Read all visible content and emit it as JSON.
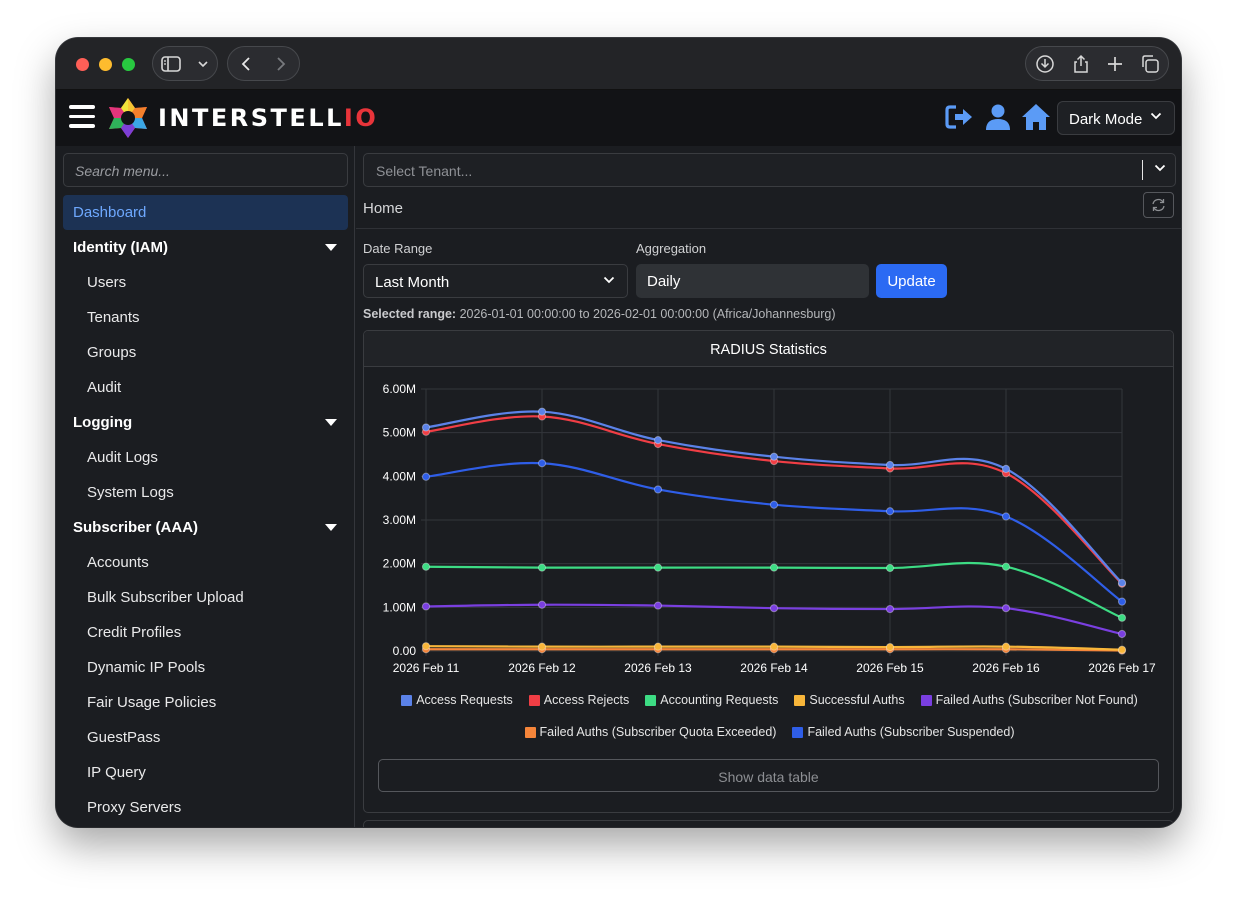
{
  "browser": {
    "icons": [
      "sidebar-icon",
      "chevron-down-icon",
      "back-icon",
      "forward-icon",
      "download-icon",
      "share-icon",
      "new-tab-icon",
      "tabs-icon"
    ]
  },
  "header": {
    "brand_main": "INTERSTELL",
    "brand_accent": "IO",
    "theme_label": "Dark Mode",
    "icon_color": "#5b9bf6"
  },
  "sidebar": {
    "search_placeholder": "Search menu...",
    "items": [
      {
        "label": "Dashboard",
        "kind": "active"
      },
      {
        "label": "Identity (IAM)",
        "kind": "section"
      },
      {
        "label": "Users",
        "kind": "sub"
      },
      {
        "label": "Tenants",
        "kind": "sub"
      },
      {
        "label": "Groups",
        "kind": "sub"
      },
      {
        "label": "Audit",
        "kind": "sub"
      },
      {
        "label": "Logging",
        "kind": "section"
      },
      {
        "label": "Audit Logs",
        "kind": "sub"
      },
      {
        "label": "System Logs",
        "kind": "sub"
      },
      {
        "label": "Subscriber (AAA)",
        "kind": "section"
      },
      {
        "label": "Accounts",
        "kind": "sub"
      },
      {
        "label": "Bulk Subscriber Upload",
        "kind": "sub"
      },
      {
        "label": "Credit Profiles",
        "kind": "sub"
      },
      {
        "label": "Dynamic IP Pools",
        "kind": "sub"
      },
      {
        "label": "Fair Usage Policies",
        "kind": "sub"
      },
      {
        "label": "GuestPass",
        "kind": "sub"
      },
      {
        "label": "IP Query",
        "kind": "sub"
      },
      {
        "label": "Proxy Servers",
        "kind": "sub"
      }
    ]
  },
  "main": {
    "tenant_placeholder": "Select Tenant...",
    "breadcrumb": "Home",
    "date_range_label": "Date Range",
    "date_range_value": "Last Month",
    "aggregation_label": "Aggregation",
    "aggregation_value": "Daily",
    "update_label": "Update",
    "selected_range_label": "Selected range:",
    "selected_range_value": "2026-01-01 00:00:00 to 2026-02-01 00:00:00 (Africa/Johannesburg)",
    "card_title": "RADIUS Statistics",
    "show_table_label": "Show data table"
  },
  "chart_data": {
    "type": "line",
    "title": "RADIUS Statistics",
    "categories": [
      "2026 Feb 11",
      "2026 Feb 12",
      "2026 Feb 13",
      "2026 Feb 14",
      "2026 Feb 15",
      "2026 Feb 16",
      "2026 Feb 17"
    ],
    "y_ticks": [
      "0.00",
      "1.00M",
      "2.00M",
      "3.00M",
      "4.00M",
      "5.00M",
      "6.00M"
    ],
    "ylim": [
      0,
      6000000
    ],
    "grid": true,
    "legend_position": "bottom",
    "series": [
      {
        "name": "Access Requests",
        "color": "#5b82e8",
        "values": [
          5120000,
          5480000,
          4830000,
          4450000,
          4260000,
          4170000,
          1560000
        ]
      },
      {
        "name": "Access Rejects",
        "color": "#f03e45",
        "values": [
          5020000,
          5370000,
          4740000,
          4350000,
          4180000,
          4070000,
          1540000
        ]
      },
      {
        "name": "Accounting Requests",
        "color": "#3ddc84",
        "values": [
          1930000,
          1910000,
          1910000,
          1910000,
          1900000,
          1930000,
          760000
        ]
      },
      {
        "name": "Successful Auths",
        "color": "#f8b63a",
        "values": [
          110000,
          100000,
          100000,
          100000,
          90000,
          100000,
          30000
        ]
      },
      {
        "name": "Failed Auths (Subscriber Not Found)",
        "color": "#7a3fe0",
        "values": [
          1020000,
          1060000,
          1040000,
          980000,
          960000,
          980000,
          390000
        ]
      },
      {
        "name": "Failed Auths (Subscriber Quota Exceeded)",
        "color": "#f5853a",
        "values": [
          40000,
          40000,
          40000,
          40000,
          40000,
          40000,
          10000
        ]
      },
      {
        "name": "Failed Auths (Subscriber Suspended)",
        "color": "#2f5ee8",
        "values": [
          3990000,
          4300000,
          3700000,
          3350000,
          3200000,
          3080000,
          1130000
        ]
      }
    ],
    "legend_rows": [
      [
        0,
        1,
        2,
        3,
        4
      ],
      [
        5,
        6
      ]
    ]
  }
}
